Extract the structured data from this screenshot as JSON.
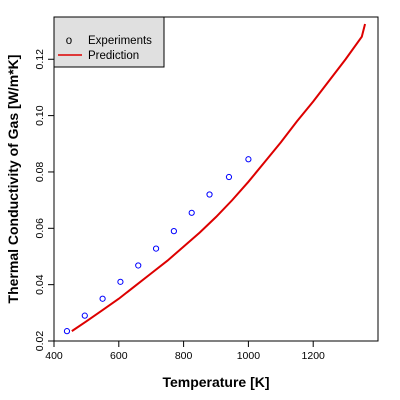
{
  "chart_data": {
    "type": "scatter",
    "xlabel": "Temperature [K]",
    "ylabel": "Thermal Conductivity of Gas [W/m*K]",
    "xlim": [
      400,
      1400
    ],
    "ylim": [
      0.02,
      0.135
    ],
    "x_ticks": [
      400,
      600,
      800,
      1000,
      1200
    ],
    "y_ticks": [
      0.02,
      0.04,
      0.06,
      0.08,
      0.1,
      0.12
    ],
    "x_tick_labels": [
      "400",
      "600",
      "800",
      "1000",
      "1200"
    ],
    "y_tick_labels": [
      "0.02",
      "0.04",
      "0.06",
      "0.08",
      "0.10",
      "0.12"
    ],
    "grid": false,
    "legend_position": "top-left",
    "legend_symbol": "o",
    "series": [
      {
        "name": "Experiments",
        "kind": "points",
        "color": "#0000ff",
        "x": [
          440,
          495,
          550,
          605,
          660,
          715,
          770,
          825,
          880,
          940,
          1000
        ],
        "y": [
          0.0235,
          0.029,
          0.035,
          0.041,
          0.0468,
          0.0528,
          0.059,
          0.0655,
          0.072,
          0.0782,
          0.0845
        ]
      },
      {
        "name": "Prediction",
        "kind": "line",
        "color": "#dd0000",
        "x": [
          455,
          500,
          550,
          600,
          650,
          700,
          750,
          800,
          850,
          900,
          950,
          1000,
          1050,
          1100,
          1150,
          1200,
          1250,
          1300,
          1350,
          1360
        ],
        "y": [
          0.0235,
          0.027,
          0.031,
          0.035,
          0.0395,
          0.044,
          0.0485,
          0.0535,
          0.0585,
          0.064,
          0.07,
          0.0765,
          0.0835,
          0.0905,
          0.098,
          0.105,
          0.1125,
          0.12,
          0.128,
          0.1325
        ]
      }
    ]
  }
}
